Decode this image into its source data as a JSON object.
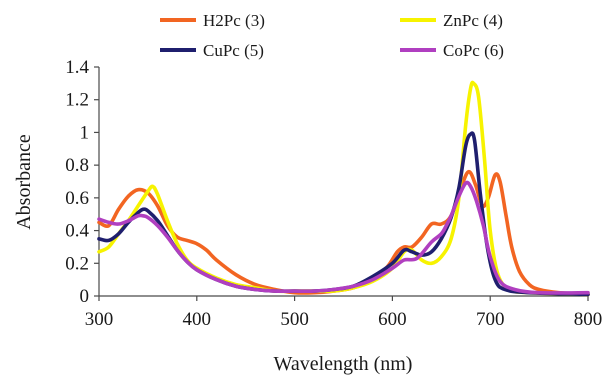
{
  "chart_data": {
    "type": "line",
    "title": "",
    "xlabel": "Wavelength (nm)",
    "ylabel": "Absorbance",
    "xlim": [
      300,
      800
    ],
    "ylim": [
      0,
      1.4
    ],
    "xticks": [
      300,
      400,
      500,
      600,
      700,
      800
    ],
    "yticks": [
      0,
      0.2,
      0.4,
      0.6,
      0.8,
      1,
      1.2,
      1.4
    ],
    "xtick_labels": [
      "300",
      "400",
      "500",
      "600",
      "700",
      "800"
    ],
    "ytick_labels": [
      "0",
      "0.2",
      "0.4",
      "0.6",
      "0.8",
      "1",
      "1.2",
      "1.4"
    ],
    "grid": false,
    "legend_position": "top",
    "series": [
      {
        "name": "H2Pc (3)",
        "color": "#f26522",
        "points": [
          [
            300,
            0.45
          ],
          [
            310,
            0.43
          ],
          [
            320,
            0.53
          ],
          [
            330,
            0.61
          ],
          [
            340,
            0.65
          ],
          [
            350,
            0.63
          ],
          [
            360,
            0.55
          ],
          [
            370,
            0.43
          ],
          [
            380,
            0.36
          ],
          [
            390,
            0.34
          ],
          [
            400,
            0.32
          ],
          [
            410,
            0.28
          ],
          [
            420,
            0.22
          ],
          [
            440,
            0.13
          ],
          [
            460,
            0.07
          ],
          [
            480,
            0.04
          ],
          [
            500,
            0.02
          ],
          [
            520,
            0.02
          ],
          [
            540,
            0.03
          ],
          [
            560,
            0.05
          ],
          [
            580,
            0.1
          ],
          [
            595,
            0.18
          ],
          [
            605,
            0.27
          ],
          [
            612,
            0.3
          ],
          [
            620,
            0.3
          ],
          [
            630,
            0.36
          ],
          [
            640,
            0.44
          ],
          [
            650,
            0.44
          ],
          [
            660,
            0.49
          ],
          [
            670,
            0.66
          ],
          [
            678,
            0.76
          ],
          [
            685,
            0.68
          ],
          [
            692,
            0.55
          ],
          [
            698,
            0.6
          ],
          [
            705,
            0.74
          ],
          [
            710,
            0.7
          ],
          [
            716,
            0.5
          ],
          [
            722,
            0.3
          ],
          [
            730,
            0.15
          ],
          [
            740,
            0.07
          ],
          [
            750,
            0.04
          ],
          [
            770,
            0.02
          ],
          [
            800,
            0.01
          ]
        ]
      },
      {
        "name": "ZnPc (4)",
        "color": "#f7f300",
        "points": [
          [
            300,
            0.27
          ],
          [
            310,
            0.3
          ],
          [
            320,
            0.38
          ],
          [
            330,
            0.46
          ],
          [
            340,
            0.55
          ],
          [
            350,
            0.64
          ],
          [
            355,
            0.67
          ],
          [
            360,
            0.62
          ],
          [
            370,
            0.46
          ],
          [
            380,
            0.32
          ],
          [
            390,
            0.22
          ],
          [
            400,
            0.17
          ],
          [
            420,
            0.11
          ],
          [
            440,
            0.07
          ],
          [
            460,
            0.05
          ],
          [
            480,
            0.03
          ],
          [
            500,
            0.03
          ],
          [
            520,
            0.03
          ],
          [
            540,
            0.03
          ],
          [
            560,
            0.05
          ],
          [
            580,
            0.09
          ],
          [
            600,
            0.17
          ],
          [
            612,
            0.27
          ],
          [
            620,
            0.28
          ],
          [
            630,
            0.22
          ],
          [
            640,
            0.2
          ],
          [
            650,
            0.24
          ],
          [
            660,
            0.35
          ],
          [
            668,
            0.6
          ],
          [
            675,
            1.05
          ],
          [
            680,
            1.27
          ],
          [
            683,
            1.3
          ],
          [
            688,
            1.22
          ],
          [
            694,
            0.85
          ],
          [
            700,
            0.4
          ],
          [
            708,
            0.13
          ],
          [
            720,
            0.04
          ],
          [
            740,
            0.02
          ],
          [
            800,
            0.01
          ]
        ]
      },
      {
        "name": "CuPc (5)",
        "color": "#1f1f6e",
        "points": [
          [
            300,
            0.35
          ],
          [
            310,
            0.34
          ],
          [
            320,
            0.38
          ],
          [
            330,
            0.45
          ],
          [
            340,
            0.51
          ],
          [
            345,
            0.53
          ],
          [
            350,
            0.52
          ],
          [
            360,
            0.46
          ],
          [
            370,
            0.37
          ],
          [
            380,
            0.28
          ],
          [
            390,
            0.21
          ],
          [
            400,
            0.16
          ],
          [
            420,
            0.1
          ],
          [
            440,
            0.06
          ],
          [
            460,
            0.04
          ],
          [
            480,
            0.03
          ],
          [
            500,
            0.03
          ],
          [
            520,
            0.03
          ],
          [
            540,
            0.04
          ],
          [
            560,
            0.06
          ],
          [
            580,
            0.12
          ],
          [
            600,
            0.2
          ],
          [
            612,
            0.28
          ],
          [
            620,
            0.27
          ],
          [
            630,
            0.25
          ],
          [
            640,
            0.27
          ],
          [
            650,
            0.35
          ],
          [
            660,
            0.48
          ],
          [
            668,
            0.66
          ],
          [
            675,
            0.92
          ],
          [
            680,
            0.99
          ],
          [
            684,
            0.95
          ],
          [
            690,
            0.62
          ],
          [
            697,
            0.3
          ],
          [
            705,
            0.1
          ],
          [
            715,
            0.04
          ],
          [
            740,
            0.02
          ],
          [
            800,
            0.01
          ]
        ]
      },
      {
        "name": "CoPc (6)",
        "color": "#b03fc0",
        "points": [
          [
            300,
            0.47
          ],
          [
            310,
            0.45
          ],
          [
            320,
            0.44
          ],
          [
            330,
            0.46
          ],
          [
            340,
            0.49
          ],
          [
            345,
            0.49
          ],
          [
            350,
            0.48
          ],
          [
            360,
            0.43
          ],
          [
            370,
            0.36
          ],
          [
            380,
            0.28
          ],
          [
            390,
            0.21
          ],
          [
            400,
            0.16
          ],
          [
            420,
            0.1
          ],
          [
            440,
            0.06
          ],
          [
            460,
            0.04
          ],
          [
            480,
            0.03
          ],
          [
            500,
            0.03
          ],
          [
            520,
            0.03
          ],
          [
            540,
            0.04
          ],
          [
            560,
            0.06
          ],
          [
            580,
            0.1
          ],
          [
            600,
            0.17
          ],
          [
            612,
            0.22
          ],
          [
            625,
            0.23
          ],
          [
            640,
            0.33
          ],
          [
            650,
            0.38
          ],
          [
            655,
            0.43
          ],
          [
            660,
            0.49
          ],
          [
            668,
            0.61
          ],
          [
            675,
            0.69
          ],
          [
            680,
            0.67
          ],
          [
            686,
            0.58
          ],
          [
            693,
            0.43
          ],
          [
            700,
            0.24
          ],
          [
            710,
            0.09
          ],
          [
            725,
            0.04
          ],
          [
            750,
            0.02
          ],
          [
            800,
            0.02
          ]
        ]
      }
    ]
  }
}
